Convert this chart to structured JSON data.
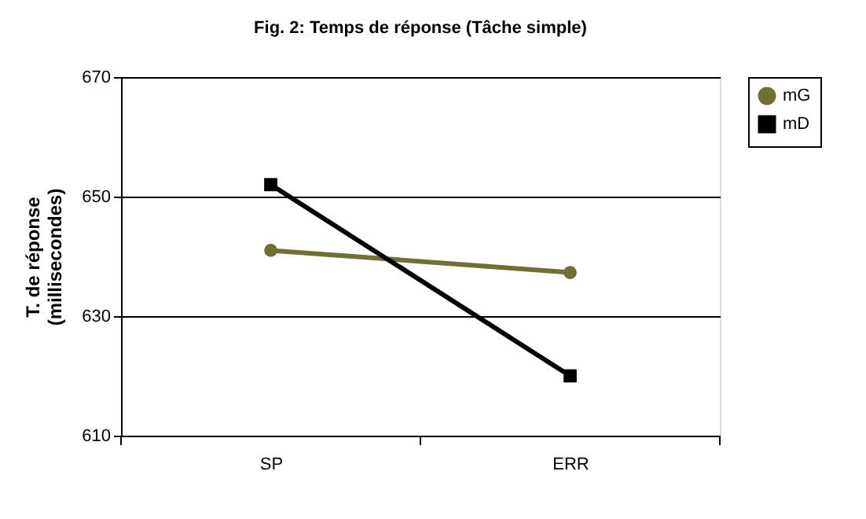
{
  "chart_data": {
    "type": "line",
    "title": "Fig. 2: Temps de réponse (Tâche simple)",
    "ylabel": "T. de réponse\n(millisecondes)",
    "categories": [
      "SP",
      "ERR"
    ],
    "series": [
      {
        "name": "mG",
        "color": "#707035",
        "marker": "circle",
        "values": [
          641,
          637.3
        ]
      },
      {
        "name": "mD",
        "color": "#000000",
        "marker": "square",
        "values": [
          652,
          620
        ]
      }
    ],
    "ylim": [
      610,
      670
    ],
    "yticks": [
      610,
      630,
      650,
      670
    ],
    "grid": "y",
    "legend": "right",
    "line_style": "solid"
  }
}
